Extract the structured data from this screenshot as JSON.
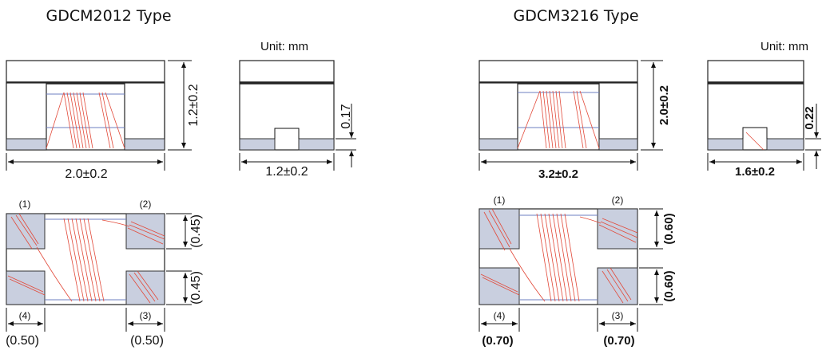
{
  "left": {
    "title": "GDCM2012 Type",
    "unit": "Unit: mm",
    "height_dim": "1.2±0.2",
    "length_dim": "2.0±0.2",
    "gap_dim": "0.17",
    "width_dim": "1.2±0.2",
    "term1": "(1)",
    "term2": "(2)",
    "term3": "(3)",
    "term4": "(4)",
    "pad_h_top": "(0.45)",
    "pad_h_bottom": "(0.45)",
    "pad_w_left": "(0.50)",
    "pad_w_right": "(0.50)"
  },
  "right": {
    "title": "GDCM3216 Type",
    "unit": "Unit: mm",
    "height_dim": "2.0±0.2",
    "length_dim": "3.2±0.2",
    "gap_dim": "0.22",
    "width_dim": "1.6±0.2",
    "term1": "(1)",
    "term2": "(2)",
    "term3": "(3)",
    "term4": "(4)",
    "pad_h_top": "(0.60)",
    "pad_h_bottom": "(0.60)",
    "pad_w_left": "(0.70)",
    "pad_w_right": "(0.70)"
  }
}
